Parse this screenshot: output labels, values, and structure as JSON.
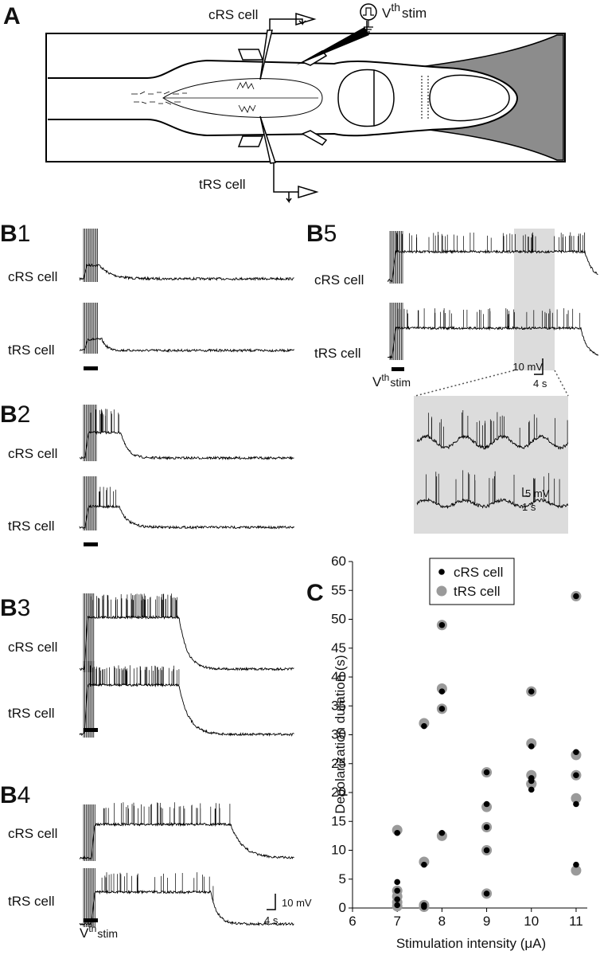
{
  "panel_a": {
    "label": "A",
    "crs_label": "cRS cell",
    "trs_label": "tRS cell",
    "stim_label": {
      "base": "V",
      "sup": "th",
      "sub": "stim"
    }
  },
  "panels_b": [
    {
      "letter": "B",
      "number": "1",
      "crs_label": "cRS cell",
      "trs_label": "tRS cell"
    },
    {
      "letter": "B",
      "number": "2",
      "crs_label": "cRS cell",
      "trs_label": "tRS cell"
    },
    {
      "letter": "B",
      "number": "3",
      "crs_label": "cRS cell",
      "trs_label": "tRS cell"
    },
    {
      "letter": "B",
      "number": "4",
      "crs_label": "cRS cell",
      "trs_label": "tRS cell",
      "stim_label": {
        "base": "V",
        "sup": "th",
        "sub": "stim"
      },
      "scale": {
        "voltage": "10 mV",
        "time": "4 s"
      }
    },
    {
      "letter": "B",
      "number": "5",
      "crs_label": "cRS cell",
      "trs_label": "tRS cell",
      "stim_label": {
        "base": "V",
        "sup": "th",
        "sub": "stim"
      },
      "scale": {
        "voltage": "10 mV",
        "time": "4 s"
      },
      "inset_scale": {
        "voltage": "5 mV",
        "time": "1 s"
      }
    }
  ],
  "panel_c_label": "C",
  "chart_data": {
    "type": "scatter",
    "x_label": "Stimulation intensity (μA)",
    "y_label": "Depolarization duration (s)",
    "xlim": [
      6,
      11.25
    ],
    "xticks": [
      6,
      7,
      8,
      9,
      10,
      11
    ],
    "ylim": [
      0,
      60
    ],
    "yticks": [
      0,
      5,
      10,
      15,
      20,
      25,
      30,
      35,
      40,
      45,
      50,
      55,
      60
    ],
    "legend": "upper left",
    "series": [
      {
        "name": "tRS cell",
        "color": "#9a9a9a",
        "x": [
          7,
          7,
          7,
          7,
          7,
          7.6,
          7.6,
          7.6,
          7.6,
          8,
          8,
          8,
          8,
          9,
          9,
          9,
          9,
          9,
          10,
          10,
          10,
          10,
          10,
          11,
          11,
          11,
          11,
          11
        ],
        "values": [
          13.5,
          3,
          2,
          1,
          0.3,
          32,
          8,
          0.5,
          0.2,
          49,
          38,
          34.5,
          12.5,
          23.5,
          17.5,
          14,
          10,
          2.5,
          37.5,
          28.5,
          23,
          21.5,
          21.5,
          54,
          26.5,
          23,
          19,
          6.5
        ]
      },
      {
        "name": "cRS cell",
        "color": "#000000",
        "x": [
          7,
          7,
          7,
          7,
          7,
          7.6,
          7.6,
          7.6,
          7.6,
          8,
          8,
          8,
          8,
          9,
          9,
          9,
          9,
          9,
          10,
          10,
          10,
          10,
          10,
          11,
          11,
          11,
          11,
          11
        ],
        "values": [
          13,
          4.5,
          3,
          1.5,
          0.5,
          31.5,
          7.5,
          0.5,
          0.2,
          49,
          37.5,
          34.5,
          13,
          23.5,
          18,
          14,
          10,
          2.5,
          37.5,
          28,
          22.5,
          22,
          20.5,
          54,
          27,
          23,
          18,
          7.5
        ]
      }
    ]
  }
}
